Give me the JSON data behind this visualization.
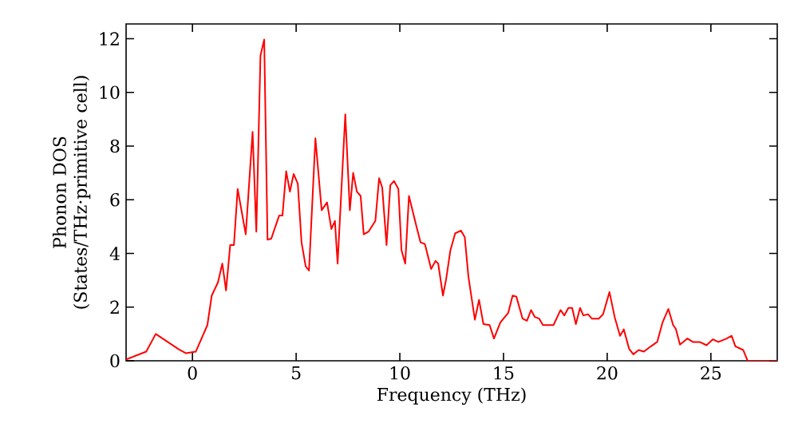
{
  "chart_data": {
    "type": "line",
    "xlabel": "Frequency (THz)",
    "ylabel": "Phonon DOS (States/THz·primitive cell)",
    "xlim": [
      -3.2,
      28.2
    ],
    "ylim": [
      0,
      12.55
    ],
    "xticks": [
      0,
      5,
      10,
      15,
      20,
      25
    ],
    "yticks": [
      0,
      2,
      4,
      6,
      8,
      10,
      12
    ],
    "series": [
      {
        "color": "#ff0000",
        "x": [
          -3.2,
          -2.23,
          -1.77,
          -0.69,
          -0.31,
          0.16,
          0.72,
          0.93,
          1.23,
          1.44,
          1.62,
          1.82,
          2.0,
          2.18,
          2.57,
          2.9,
          3.08,
          3.28,
          3.46,
          3.62,
          3.8,
          4.18,
          4.34,
          4.52,
          4.7,
          4.88,
          5.08,
          5.26,
          5.46,
          5.62,
          5.93,
          6.23,
          6.49,
          6.7,
          6.87,
          7.0,
          7.37,
          7.59,
          7.75,
          7.93,
          8.11,
          8.26,
          8.49,
          8.82,
          9.0,
          9.15,
          9.36,
          9.54,
          9.72,
          9.93,
          10.08,
          10.26,
          10.44,
          10.8,
          11.0,
          11.21,
          11.51,
          11.72,
          11.85,
          12.08,
          12.23,
          12.44,
          12.67,
          12.95,
          13.13,
          13.31,
          13.62,
          13.82,
          14.03,
          14.33,
          14.54,
          14.85,
          15.23,
          15.44,
          15.62,
          15.92,
          16.13,
          16.33,
          16.51,
          16.72,
          16.9,
          17.41,
          17.75,
          17.93,
          18.13,
          18.31,
          18.49,
          18.69,
          18.85,
          19.08,
          19.26,
          19.59,
          19.8,
          20.11,
          20.36,
          20.62,
          20.8,
          21.06,
          21.26,
          21.52,
          21.77,
          22.11,
          22.41,
          22.67,
          22.95,
          23.18,
          23.31,
          23.51,
          23.87,
          24.13,
          24.46,
          24.79,
          25.1,
          25.36,
          25.74,
          26.0,
          26.18,
          26.56,
          26.77,
          28.2
        ],
        "values": [
          0.05,
          0.34,
          1.0,
          0.44,
          0.28,
          0.34,
          1.33,
          2.43,
          2.92,
          3.62,
          2.62,
          4.31,
          4.31,
          6.4,
          4.71,
          8.53,
          4.81,
          11.37,
          11.97,
          4.51,
          4.55,
          5.41,
          5.41,
          7.06,
          6.3,
          6.96,
          6.6,
          4.41,
          3.52,
          3.36,
          8.29,
          5.61,
          5.9,
          4.91,
          5.21,
          3.62,
          9.18,
          5.61,
          7.0,
          6.3,
          6.14,
          4.71,
          4.81,
          5.21,
          6.8,
          6.46,
          4.31,
          6.54,
          6.7,
          6.4,
          4.12,
          3.62,
          6.14,
          5.01,
          4.41,
          4.35,
          3.42,
          3.72,
          3.62,
          2.43,
          3.02,
          4.12,
          4.75,
          4.85,
          4.61,
          3.12,
          1.53,
          2.27,
          1.37,
          1.33,
          0.83,
          1.43,
          1.79,
          2.43,
          2.39,
          1.57,
          1.49,
          1.89,
          1.63,
          1.57,
          1.33,
          1.33,
          1.89,
          1.69,
          1.97,
          1.97,
          1.37,
          1.97,
          1.69,
          1.73,
          1.57,
          1.57,
          1.73,
          2.56,
          1.63,
          0.93,
          1.17,
          0.44,
          0.24,
          0.4,
          0.34,
          0.54,
          0.7,
          1.43,
          1.93,
          1.33,
          1.19,
          0.6,
          0.83,
          0.7,
          0.7,
          0.58,
          0.8,
          0.7,
          0.82,
          0.93,
          0.54,
          0.4,
          0,
          0
        ]
      }
    ]
  }
}
